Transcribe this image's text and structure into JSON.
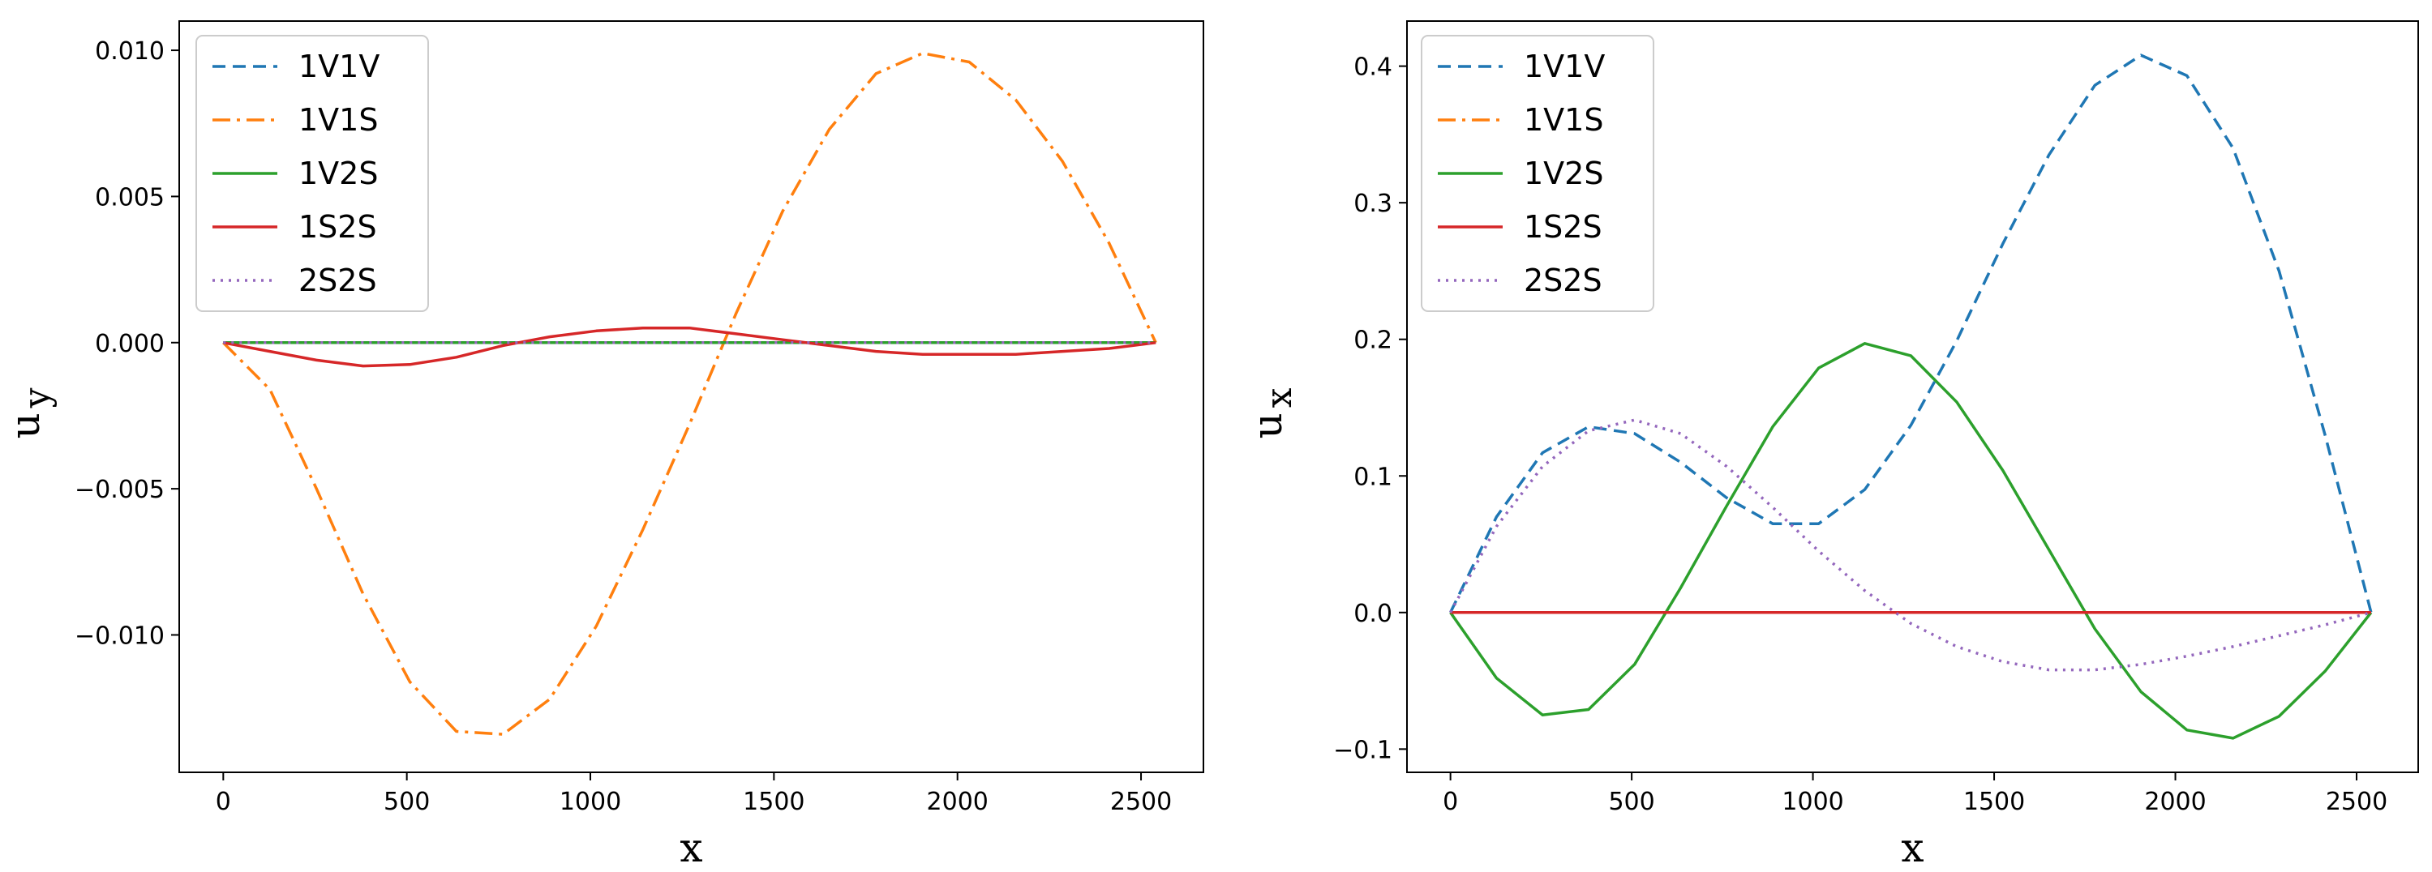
{
  "chart_data": [
    {
      "type": "line",
      "title": "",
      "xlabel": "x",
      "ylabel": "u",
      "ylabel_sub": "y",
      "xlim": [
        -120,
        2670
      ],
      "ylim": [
        -0.0147,
        0.011
      ],
      "xticks": [
        0,
        500,
        1000,
        1500,
        2000,
        2500
      ],
      "xtick_labels": [
        "0",
        "500",
        "1000",
        "1500",
        "2000",
        "2500"
      ],
      "yticks": [
        -0.01,
        -0.005,
        0.0,
        0.005,
        0.01
      ],
      "ytick_labels": [
        "−0.010",
        "−0.005",
        "0.000",
        "0.005",
        "0.010"
      ],
      "legend": "top-left",
      "x": [
        0,
        127,
        254,
        381,
        508,
        635,
        762,
        889,
        1016,
        1143,
        1270,
        1397,
        1524,
        1651,
        1778,
        1905,
        2032,
        2159,
        2286,
        2413,
        2540
      ],
      "series": [
        {
          "name": "1V1V",
          "values": [
            0,
            0,
            0,
            0,
            0,
            0,
            0,
            0,
            0,
            0,
            0,
            0,
            0,
            0,
            0,
            0,
            0,
            0,
            0,
            0,
            0
          ]
        },
        {
          "name": "1V1S",
          "values": [
            0,
            -0.0016,
            -0.005,
            -0.0086,
            -0.0116,
            -0.0133,
            -0.0134,
            -0.0122,
            -0.0097,
            -0.0064,
            -0.0028,
            0.001,
            0.0045,
            0.0073,
            0.0092,
            0.0099,
            0.0096,
            0.0083,
            0.0062,
            0.0034,
            0
          ]
        },
        {
          "name": "1V2S",
          "values": [
            0,
            0,
            0,
            0,
            0,
            0,
            0,
            0,
            0,
            0,
            0,
            0,
            0,
            0,
            0,
            0,
            0,
            0,
            0,
            0,
            0
          ]
        },
        {
          "name": "1S2S",
          "values": [
            0,
            -0.0003,
            -0.0006,
            -0.0008,
            -0.00075,
            -0.0005,
            -0.0001,
            0.0002,
            0.0004,
            0.0005,
            0.0005,
            0.0003,
            0.0001,
            -0.0001,
            -0.0003,
            -0.0004,
            -0.0004,
            -0.0004,
            -0.0003,
            -0.0002,
            0
          ]
        },
        {
          "name": "2S2S",
          "values": [
            0,
            0,
            0,
            0,
            0,
            0,
            0,
            0,
            0,
            0,
            0,
            0,
            0,
            0,
            0,
            0,
            0,
            0,
            0,
            0,
            0
          ]
        }
      ]
    },
    {
      "type": "line",
      "title": "",
      "xlabel": "x",
      "ylabel": "u",
      "ylabel_sub": "x",
      "xlim": [
        -120,
        2670
      ],
      "ylim": [
        -0.117,
        0.433
      ],
      "xticks": [
        0,
        500,
        1000,
        1500,
        2000,
        2500
      ],
      "xtick_labels": [
        "0",
        "500",
        "1000",
        "1500",
        "2000",
        "2500"
      ],
      "yticks": [
        -0.1,
        0.0,
        0.1,
        0.2,
        0.3,
        0.4
      ],
      "ytick_labels": [
        "−0.1",
        "0.0",
        "0.1",
        "0.2",
        "0.3",
        "0.4"
      ],
      "legend": "top-left",
      "x": [
        0,
        127,
        254,
        381,
        508,
        635,
        762,
        889,
        1016,
        1143,
        1270,
        1397,
        1524,
        1651,
        1778,
        1905,
        2032,
        2159,
        2286,
        2413,
        2540
      ],
      "series": [
        {
          "name": "1V1V",
          "values": [
            0,
            0.07,
            0.117,
            0.136,
            0.131,
            0.11,
            0.084,
            0.065,
            0.065,
            0.09,
            0.137,
            0.199,
            0.27,
            0.335,
            0.386,
            0.408,
            0.393,
            0.34,
            0.25,
            0.13,
            0
          ]
        },
        {
          "name": "1V1S",
          "values": [
            0,
            0,
            0,
            0,
            0,
            0,
            0,
            0,
            0,
            0,
            0,
            0,
            0,
            0,
            0,
            0,
            0,
            0,
            0,
            0,
            0
          ]
        },
        {
          "name": "1V2S",
          "values": [
            0,
            -0.048,
            -0.075,
            -0.071,
            -0.038,
            0.018,
            0.078,
            0.136,
            0.179,
            0.197,
            0.188,
            0.154,
            0.104,
            0.046,
            -0.012,
            -0.058,
            -0.086,
            -0.092,
            -0.076,
            -0.043,
            0
          ]
        },
        {
          "name": "1S2S",
          "values": [
            0,
            0,
            0,
            0,
            0,
            0,
            0,
            0,
            0,
            0,
            0,
            0,
            0,
            0,
            0,
            0,
            0,
            0,
            0,
            0,
            0
          ]
        },
        {
          "name": "2S2S",
          "values": [
            0,
            0.063,
            0.107,
            0.133,
            0.141,
            0.131,
            0.107,
            0.077,
            0.045,
            0.016,
            -0.008,
            -0.025,
            -0.036,
            -0.042,
            -0.042,
            -0.038,
            -0.032,
            -0.025,
            -0.017,
            -0.009,
            0
          ]
        }
      ]
    }
  ],
  "colors": {
    "1V1V": "#1f77b4",
    "1V1S": "#ff7f0e",
    "1V2S": "#2ca02c",
    "1S2S": "#d62728",
    "2S2S": "#9467bd"
  }
}
